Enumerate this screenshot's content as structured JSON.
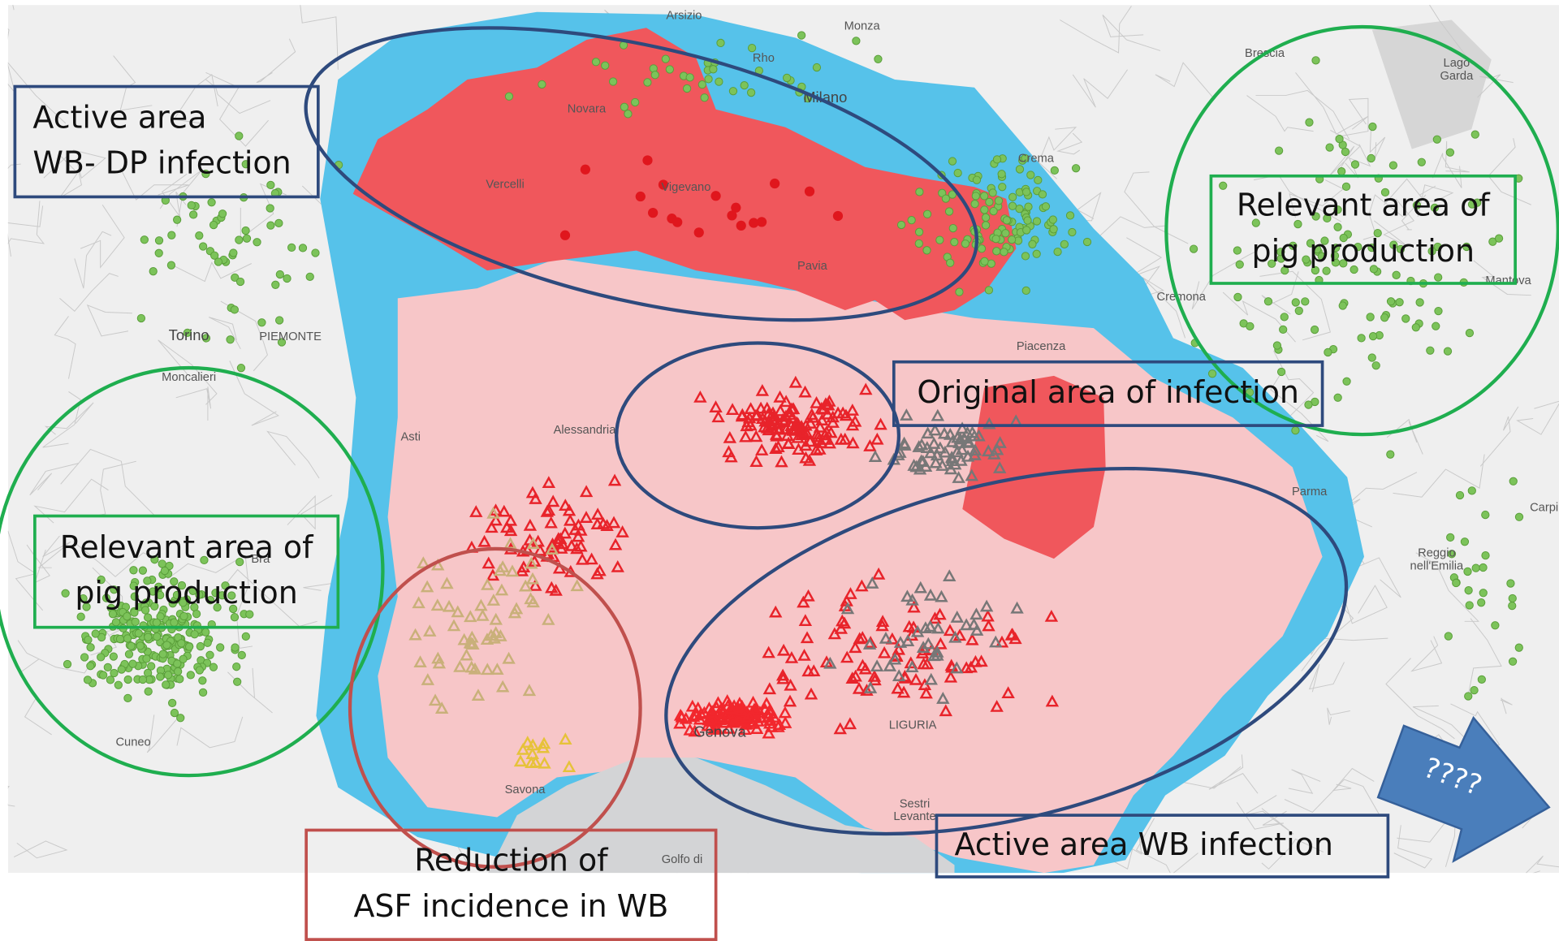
{
  "annotations": [
    {
      "lines": [
        "Active area",
        "WB- DP infection"
      ]
    },
    {
      "lines": [
        "Relevant area of",
        "pig production"
      ]
    },
    {
      "lines": [
        "Original area of infection"
      ]
    },
    {
      "lines": [
        "Relevant area of",
        "pig production"
      ]
    },
    {
      "lines": [
        "Reduction of",
        "ASF incidence in WB"
      ]
    },
    {
      "lines": [
        "Active area WB infection"
      ]
    }
  ],
  "arrow_label": "????",
  "place_names": [
    {
      "lines": [
        "Milano"
      ]
    },
    {
      "lines": [
        "Novara"
      ]
    },
    {
      "lines": [
        "Vercelli"
      ]
    },
    {
      "lines": [
        "Vigevano"
      ]
    },
    {
      "lines": [
        "Pavia"
      ]
    },
    {
      "lines": [
        "Torino"
      ]
    },
    {
      "lines": [
        "PIEMONTE"
      ]
    },
    {
      "lines": [
        "Moncalieri"
      ]
    },
    {
      "lines": [
        "Asti"
      ]
    },
    {
      "lines": [
        "Alessandria"
      ]
    },
    {
      "lines": [
        "Genova"
      ]
    },
    {
      "lines": [
        "Savona"
      ]
    },
    {
      "lines": [
        "Cuneo"
      ]
    },
    {
      "lines": [
        "Piacenza"
      ]
    },
    {
      "lines": [
        "Parma"
      ]
    },
    {
      "lines": [
        "Cremona"
      ]
    },
    {
      "lines": [
        "Crema"
      ]
    },
    {
      "lines": [
        "Brescia"
      ]
    },
    {
      "lines": [
        "Monza"
      ]
    },
    {
      "lines": [
        "Arsizio"
      ]
    },
    {
      "lines": [
        "Rho"
      ]
    },
    {
      "lines": [
        "Mantova"
      ]
    },
    {
      "lines": [
        "Lago",
        "Garda"
      ]
    },
    {
      "lines": [
        "Carpi"
      ]
    },
    {
      "lines": [
        "Reggio",
        "nell'Emilia"
      ]
    },
    {
      "lines": [
        "Sestri",
        "Levante"
      ]
    },
    {
      "lines": [
        "Golfo di"
      ]
    },
    {
      "lines": [
        "LIGURIA"
      ]
    },
    {
      "lines": [
        "Bra"
      ]
    }
  ]
}
